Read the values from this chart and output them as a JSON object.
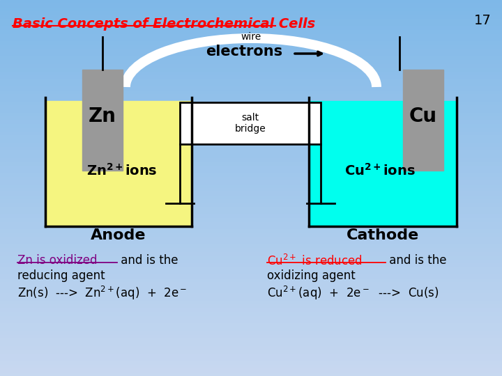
{
  "title": "Basic Concepts of Electrochemical Cells",
  "slide_number": "17",
  "bg_color_top": "#7eb8e8",
  "bg_color_bottom": "#c8d8f0",
  "wire_label": "wire",
  "electrons_label": "electrons",
  "salt_bridge_label": "salt\nbridge",
  "anode_label": "Anode",
  "cathode_label": "Cathode",
  "zn_label": "Zn",
  "cu_label": "Cu",
  "zn_solution_color": "#f5f580",
  "cu_solution_color": "#00ffee",
  "electrode_color": "#999999",
  "wire_color": "#ffffff"
}
